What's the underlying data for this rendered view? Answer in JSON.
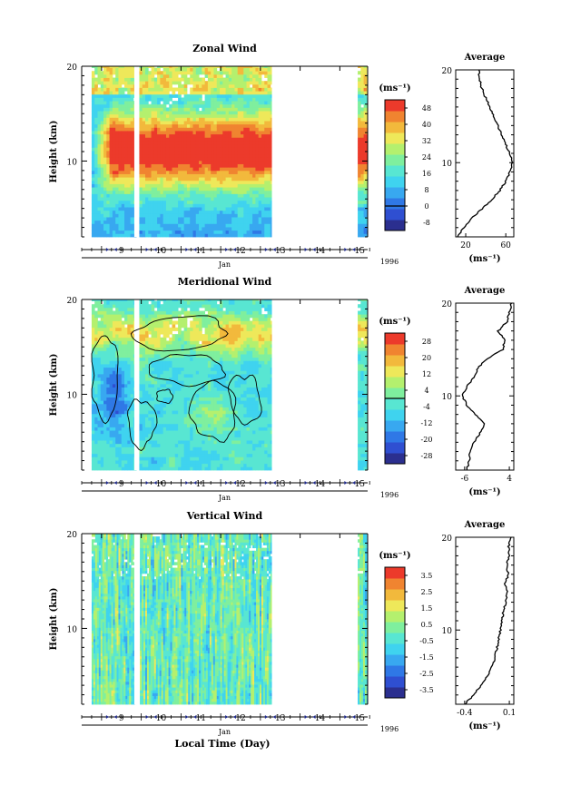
{
  "xlabel": "Local Time (Day)",
  "colors": {
    "palette": [
      "#2b2f8f",
      "#2f4fd1",
      "#2f78e6",
      "#38a8f0",
      "#3fd3ef",
      "#58e6d2",
      "#7fef9e",
      "#b4f06e",
      "#eee85a",
      "#f2b93c",
      "#f08430",
      "#ec3a2b"
    ],
    "contour": "#000000",
    "panel_gap": "#ffffff"
  },
  "chart_data": [
    {
      "type": "heatmap",
      "title": "Zonal Wind",
      "ylabel": "Height (km)",
      "ylim": [
        2,
        20
      ],
      "yticks": [
        "20",
        "10"
      ],
      "xlim": [
        8.5,
        15.7
      ],
      "xticks": [
        "9",
        "10",
        "11",
        "12",
        "13",
        "14",
        "15"
      ],
      "x_month": "Jan",
      "x_year": "1996",
      "data_columns": [
        [
          8.75,
          13.28
        ],
        [
          15.45,
          15.7
        ]
      ],
      "gap_day": 9.87,
      "colorbar": {
        "unit": "(ms⁻¹)",
        "ticks": [
          "48",
          "40",
          "32",
          "24",
          "16",
          "8",
          "0",
          "-8"
        ],
        "range": [
          -12,
          52
        ],
        "zero_line": 0
      },
      "average_profile": {
        "title": "Average",
        "xlabel": "(ms⁻¹)",
        "xticks": [
          "20",
          "60"
        ],
        "xlim": [
          10,
          68
        ],
        "yticks": [
          "20",
          "10"
        ],
        "height_km": [
          2,
          3,
          4,
          5,
          6,
          7,
          8,
          9,
          10,
          11,
          12,
          13,
          14,
          15,
          16,
          17,
          18,
          19,
          20
        ],
        "values": [
          12,
          18,
          26,
          36,
          46,
          54,
          60,
          64,
          67,
          64,
          60,
          56,
          52,
          48,
          44,
          40,
          36,
          34,
          33
        ]
      }
    },
    {
      "type": "heatmap",
      "title": "Meridional Wind",
      "ylabel": "Height (km)",
      "ylim": [
        2,
        20
      ],
      "yticks": [
        "20",
        "10"
      ],
      "xlim": [
        8.5,
        15.7
      ],
      "xticks": [
        "9",
        "10",
        "11",
        "12",
        "13",
        "14",
        "15"
      ],
      "x_month": "Jan",
      "x_year": "1996",
      "data_columns": [
        [
          8.75,
          13.28
        ],
        [
          15.45,
          15.7
        ]
      ],
      "gap_day": 9.87,
      "colorbar": {
        "unit": "(ms⁻¹)",
        "ticks": [
          "28",
          "20",
          "12",
          "4",
          "-4",
          "-12",
          "-20",
          "-28"
        ],
        "range": [
          -32,
          32
        ],
        "zero_line": 0
      },
      "average_profile": {
        "title": "Average",
        "xlabel": "(ms⁻¹)",
        "xticks": [
          "-6",
          "4"
        ],
        "xlim": [
          -8,
          5
        ],
        "yticks": [
          "20",
          "10"
        ],
        "height_km": [
          2,
          3,
          4,
          5,
          6,
          7,
          8,
          9,
          10,
          11,
          12,
          13,
          14,
          15,
          16,
          17,
          18,
          19,
          20
        ],
        "values": [
          -5.5,
          -5,
          -4.8,
          -4,
          -2.5,
          -1.5,
          -3.5,
          -5.5,
          -6.5,
          -5.5,
          -4,
          -3,
          -1,
          2.5,
          3,
          1.5,
          3.5,
          4,
          4.5
        ]
      }
    },
    {
      "type": "heatmap",
      "title": "Vertical Wind",
      "ylabel": "Height (km)",
      "ylim": [
        2,
        20
      ],
      "yticks": [
        "20",
        "10"
      ],
      "xlim": [
        8.5,
        15.7
      ],
      "xticks": [
        "9",
        "10",
        "11",
        "12",
        "13",
        "14",
        "15"
      ],
      "x_month": "Jan",
      "x_year": "1996",
      "data_columns": [
        [
          8.75,
          13.28
        ],
        [
          15.45,
          15.7
        ]
      ],
      "gap_day": 9.87,
      "colorbar": {
        "unit": "(ms⁻¹)",
        "ticks": [
          "3.5",
          "2.5",
          "1.5",
          "0.5",
          "-0.5",
          "-1.5",
          "-2.5",
          "-3.5"
        ],
        "range": [
          -4,
          4
        ],
        "zero_line": null
      },
      "average_profile": {
        "title": "Average",
        "xlabel": "(ms⁻¹)",
        "xticks": [
          "-0.4",
          "0.1"
        ],
        "xlim": [
          -0.5,
          0.15
        ],
        "yticks": [
          "20",
          "10"
        ],
        "height_km": [
          2,
          3,
          4,
          5,
          6,
          7,
          8,
          9,
          10,
          11,
          12,
          13,
          14,
          15,
          16,
          17,
          18,
          19,
          20
        ],
        "values": [
          -0.4,
          -0.3,
          -0.22,
          -0.15,
          -0.1,
          -0.06,
          -0.04,
          -0.02,
          0.0,
          0.02,
          0.03,
          0.06,
          0.08,
          0.05,
          0.09,
          0.07,
          0.1,
          0.09,
          0.12
        ]
      }
    }
  ]
}
